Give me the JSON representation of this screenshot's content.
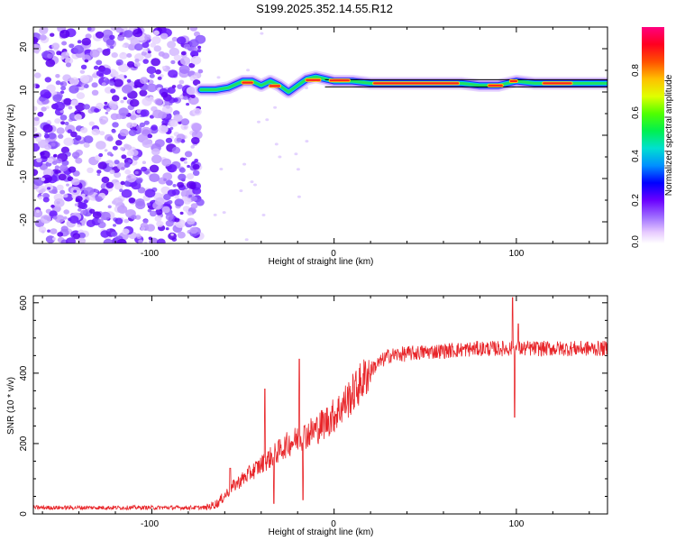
{
  "title": "S199.2025.352.14.55.R12",
  "chart_data": [
    {
      "type": "heatmap",
      "xlabel": "Height of straight line (km)",
      "ylabel": "Frequency (Hz)",
      "xlim": [
        -165,
        150
      ],
      "ylim": [
        -25,
        25
      ],
      "x_ticks": [
        "-100",
        "0",
        "100"
      ],
      "y_ticks": [
        "-20",
        "-10",
        "0",
        "10",
        "20"
      ],
      "colorbar": {
        "label": "Normalized spectral amplitude",
        "range": [
          0,
          1
        ],
        "ticks": [
          "0.0",
          "0.2",
          "0.4",
          "0.6",
          "0.8"
        ]
      },
      "noise_region_x": [
        -165,
        -73
      ],
      "signal_track": [
        {
          "x": -73,
          "y": 10.5
        },
        {
          "x": -65,
          "y": 10.5
        },
        {
          "x": -58,
          "y": 11
        },
        {
          "x": -50,
          "y": 12.5
        },
        {
          "x": -45,
          "y": 12.5
        },
        {
          "x": -40,
          "y": 11.5
        },
        {
          "x": -35,
          "y": 12.5
        },
        {
          "x": -30,
          "y": 11.5
        },
        {
          "x": -25,
          "y": 10
        },
        {
          "x": -20,
          "y": 11.5
        },
        {
          "x": -15,
          "y": 13
        },
        {
          "x": -10,
          "y": 13.5
        },
        {
          "x": -5,
          "y": 13
        },
        {
          "x": 0,
          "y": 12.5
        },
        {
          "x": 10,
          "y": 12.5
        },
        {
          "x": 20,
          "y": 12
        },
        {
          "x": 50,
          "y": 12
        },
        {
          "x": 70,
          "y": 12
        },
        {
          "x": 80,
          "y": 11.5
        },
        {
          "x": 90,
          "y": 11.5
        },
        {
          "x": 100,
          "y": 12.5
        },
        {
          "x": 110,
          "y": 12
        },
        {
          "x": 130,
          "y": 12
        },
        {
          "x": 150,
          "y": 12
        }
      ]
    },
    {
      "type": "line",
      "xlabel": "Height of straight line (km)",
      "ylabel": "SNR (10 * v/v)",
      "xlim": [
        -165,
        150
      ],
      "ylim": [
        0,
        620
      ],
      "x_ticks": [
        "-100",
        "0",
        "100"
      ],
      "y_ticks": [
        "0",
        "200",
        "400",
        "600"
      ],
      "series": [
        {
          "name": "SNR",
          "color": "#e8262a",
          "trend": [
            {
              "x": -165,
              "y": 18
            },
            {
              "x": -70,
              "y": 18
            },
            {
              "x": -64,
              "y": 30
            },
            {
              "x": -55,
              "y": 80
            },
            {
              "x": -40,
              "y": 140
            },
            {
              "x": -25,
              "y": 200
            },
            {
              "x": -10,
              "y": 240
            },
            {
              "x": 0,
              "y": 280
            },
            {
              "x": 10,
              "y": 340
            },
            {
              "x": 20,
              "y": 410
            },
            {
              "x": 30,
              "y": 450
            },
            {
              "x": 50,
              "y": 460
            },
            {
              "x": 80,
              "y": 470
            },
            {
              "x": 100,
              "y": 470
            },
            {
              "x": 150,
              "y": 470
            }
          ],
          "spikes": [
            {
              "x": -57,
              "y": 130
            },
            {
              "x": -38,
              "y": 355
            },
            {
              "x": -33,
              "y": 30
            },
            {
              "x": -19,
              "y": 440
            },
            {
              "x": -17,
              "y": 40
            },
            {
              "x": 98,
              "y": 615
            },
            {
              "x": 99,
              "y": 275
            },
            {
              "x": 101,
              "y": 540
            }
          ]
        }
      ]
    }
  ]
}
